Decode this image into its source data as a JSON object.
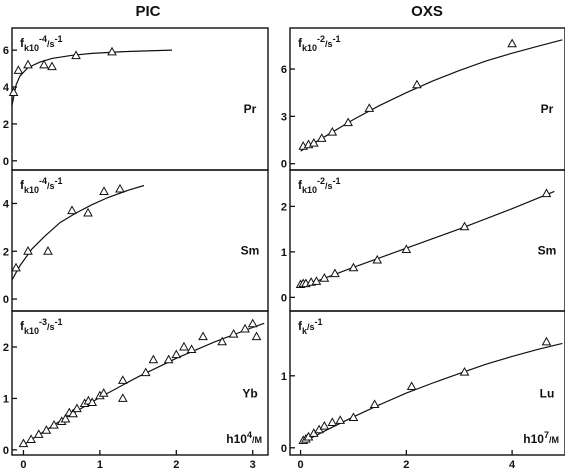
{
  "columns": [
    "PIC",
    "OXS"
  ],
  "chart_data": [
    {
      "type": "scatter",
      "column": "PIC",
      "row": 0,
      "ylabel": "f_k10^-4/s^-1",
      "element": "Pr",
      "xlim": [
        0,
        3.2
      ],
      "ylim": [
        -0.5,
        7.2
      ],
      "yticks": [
        0,
        2,
        4,
        6
      ],
      "points": [
        [
          0.02,
          3.7
        ],
        [
          0.08,
          4.9
        ],
        [
          0.2,
          5.2
        ],
        [
          0.4,
          5.2
        ],
        [
          0.5,
          5.1
        ],
        [
          0.8,
          5.7
        ],
        [
          1.25,
          5.9
        ]
      ],
      "fit": [
        [
          0.0,
          3.0
        ],
        [
          0.05,
          4.1
        ],
        [
          0.1,
          4.6
        ],
        [
          0.2,
          5.05
        ],
        [
          0.35,
          5.35
        ],
        [
          0.5,
          5.55
        ],
        [
          0.75,
          5.72
        ],
        [
          1.0,
          5.82
        ],
        [
          1.4,
          5.92
        ],
        [
          2.0,
          6.0
        ]
      ]
    },
    {
      "type": "scatter",
      "column": "PIC",
      "row": 1,
      "ylabel": "f_k10^-4/s^-1",
      "element": "Sm",
      "xlim": [
        0,
        3.2
      ],
      "ylim": [
        -0.5,
        5.4
      ],
      "yticks": [
        0,
        2,
        4
      ],
      "points": [
        [
          0.05,
          1.3
        ],
        [
          0.2,
          2.0
        ],
        [
          0.45,
          2.0
        ],
        [
          0.75,
          3.7
        ],
        [
          0.95,
          3.6
        ],
        [
          1.15,
          4.5
        ],
        [
          1.35,
          4.6
        ]
      ],
      "fit": [
        [
          0.0,
          0.8
        ],
        [
          0.1,
          1.4
        ],
        [
          0.25,
          2.1
        ],
        [
          0.4,
          2.6
        ],
        [
          0.6,
          3.2
        ],
        [
          0.8,
          3.6
        ],
        [
          1.0,
          3.95
        ],
        [
          1.2,
          4.25
        ],
        [
          1.45,
          4.55
        ],
        [
          1.65,
          4.75
        ]
      ]
    },
    {
      "type": "scatter",
      "column": "PIC",
      "row": 2,
      "ylabel": "f_k10^-3/s^-1",
      "element": "Yb",
      "xlabel": "h10^4/M",
      "xlim": [
        -0.15,
        3.2
      ],
      "ylim": [
        -0.1,
        2.7
      ],
      "xticks": [
        0,
        1,
        2,
        3
      ],
      "yticks": [
        0,
        1,
        2
      ],
      "points": [
        [
          0.0,
          0.12
        ],
        [
          0.1,
          0.2
        ],
        [
          0.2,
          0.3
        ],
        [
          0.3,
          0.38
        ],
        [
          0.4,
          0.48
        ],
        [
          0.5,
          0.55
        ],
        [
          0.55,
          0.6
        ],
        [
          0.6,
          0.72
        ],
        [
          0.65,
          0.7
        ],
        [
          0.7,
          0.8
        ],
        [
          0.8,
          0.9
        ],
        [
          0.85,
          0.95
        ],
        [
          0.9,
          0.92
        ],
        [
          1.0,
          1.05
        ],
        [
          1.05,
          1.1
        ],
        [
          1.3,
          1.35
        ],
        [
          1.3,
          1.0
        ],
        [
          1.6,
          1.5
        ],
        [
          1.7,
          1.75
        ],
        [
          1.9,
          1.75
        ],
        [
          2.0,
          1.85
        ],
        [
          2.1,
          2.0
        ],
        [
          2.2,
          1.95
        ],
        [
          2.35,
          2.2
        ],
        [
          2.6,
          2.1
        ],
        [
          2.75,
          2.25
        ],
        [
          2.9,
          2.35
        ],
        [
          3.0,
          2.45
        ],
        [
          3.05,
          2.2
        ]
      ],
      "fit": [
        [
          0.0,
          0.1
        ],
        [
          0.5,
          0.58
        ],
        [
          1.0,
          1.02
        ],
        [
          1.5,
          1.42
        ],
        [
          2.0,
          1.78
        ],
        [
          2.5,
          2.1
        ],
        [
          3.0,
          2.38
        ],
        [
          3.15,
          2.46
        ]
      ]
    },
    {
      "type": "scatter",
      "column": "OXS",
      "row": 0,
      "ylabel": "f_k10^-2/s^-1",
      "element": "Pr",
      "xlim": [
        -0.2,
        5.0
      ],
      "ylim": [
        -0.4,
        8.6
      ],
      "yticks": [
        0,
        3,
        6
      ],
      "points": [
        [
          0.05,
          1.1
        ],
        [
          0.15,
          1.2
        ],
        [
          0.25,
          1.3
        ],
        [
          0.4,
          1.6
        ],
        [
          0.6,
          2.0
        ],
        [
          0.9,
          2.6
        ],
        [
          1.3,
          3.5
        ],
        [
          2.2,
          5.0
        ],
        [
          4.0,
          7.6
        ]
      ],
      "fit": [
        [
          0.0,
          0.8
        ],
        [
          0.5,
          1.8
        ],
        [
          1.0,
          2.8
        ],
        [
          1.5,
          3.7
        ],
        [
          2.0,
          4.5
        ],
        [
          2.5,
          5.25
        ],
        [
          3.0,
          5.9
        ],
        [
          3.5,
          6.5
        ],
        [
          4.0,
          7.0
        ],
        [
          4.5,
          7.45
        ],
        [
          4.95,
          7.85
        ]
      ]
    },
    {
      "type": "scatter",
      "column": "OXS",
      "row": 1,
      "ylabel": "f_k10^-2/s^-1",
      "element": "Sm",
      "xlim": [
        -0.2,
        5.0
      ],
      "ylim": [
        -0.3,
        2.8
      ],
      "yticks": [
        0,
        1,
        2
      ],
      "points": [
        [
          0.0,
          0.28
        ],
        [
          0.05,
          0.3
        ],
        [
          0.1,
          0.3
        ],
        [
          0.2,
          0.33
        ],
        [
          0.3,
          0.35
        ],
        [
          0.45,
          0.42
        ],
        [
          0.65,
          0.52
        ],
        [
          1.0,
          0.65
        ],
        [
          1.45,
          0.82
        ],
        [
          2.0,
          1.05
        ],
        [
          3.1,
          1.55
        ],
        [
          4.65,
          2.28
        ]
      ],
      "fit": [
        [
          0.0,
          0.22
        ],
        [
          1.0,
          0.66
        ],
        [
          2.0,
          1.08
        ],
        [
          3.0,
          1.5
        ],
        [
          4.0,
          1.95
        ],
        [
          4.8,
          2.33
        ]
      ]
    },
    {
      "type": "scatter",
      "column": "OXS",
      "row": 2,
      "ylabel": "f_k/s^-1",
      "element": "Lu",
      "xlabel": "h10^7/M",
      "xlim": [
        -0.2,
        5.0
      ],
      "ylim": [
        -0.1,
        1.9
      ],
      "xticks": [
        0,
        2,
        4
      ],
      "yticks": [
        0,
        1
      ],
      "points": [
        [
          0.05,
          0.1
        ],
        [
          0.1,
          0.12
        ],
        [
          0.15,
          0.15
        ],
        [
          0.25,
          0.2
        ],
        [
          0.35,
          0.25
        ],
        [
          0.45,
          0.3
        ],
        [
          0.6,
          0.35
        ],
        [
          0.75,
          0.38
        ],
        [
          1.0,
          0.42
        ],
        [
          1.4,
          0.6
        ],
        [
          2.1,
          0.85
        ],
        [
          3.1,
          1.05
        ],
        [
          4.65,
          1.47
        ]
      ],
      "fit": [
        [
          0.0,
          0.06
        ],
        [
          0.5,
          0.25
        ],
        [
          1.0,
          0.43
        ],
        [
          1.5,
          0.6
        ],
        [
          2.0,
          0.76
        ],
        [
          2.5,
          0.9
        ],
        [
          3.0,
          1.03
        ],
        [
          3.5,
          1.16
        ],
        [
          4.0,
          1.27
        ],
        [
          4.5,
          1.37
        ],
        [
          4.95,
          1.45
        ]
      ]
    }
  ]
}
